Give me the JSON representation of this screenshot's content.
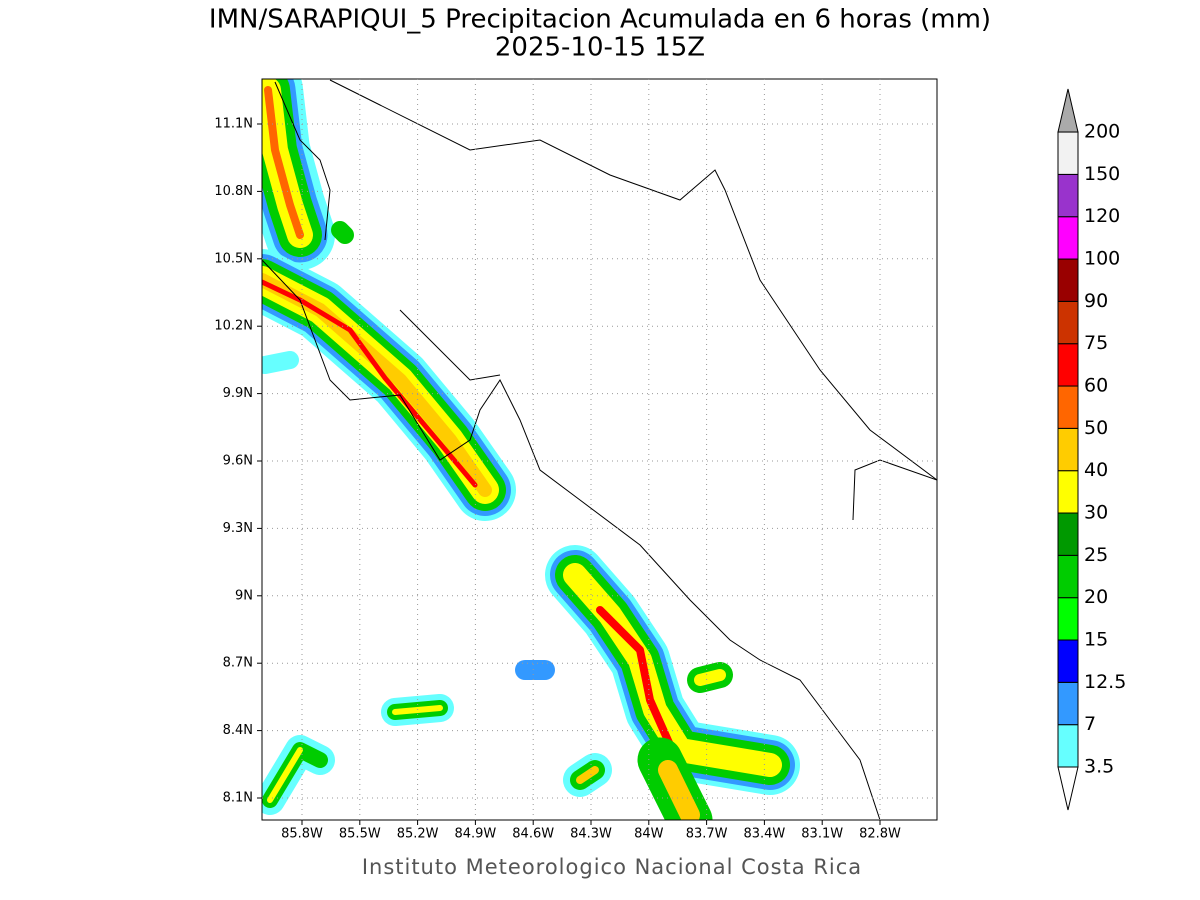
{
  "title": "IMN/SARAPIQUI_5 Precipitacion Acumulada en 6 horas (mm)",
  "subtitle": "2025-10-15 15Z",
  "map": {
    "lat_labels": [
      "11.1N",
      "10.8N",
      "10.5N",
      "10.2N",
      "9.9N",
      "9.6N",
      "9.3N",
      "9N",
      "8.7N",
      "8.4N",
      "8.1N"
    ],
    "lon_labels": [
      "85.8W",
      "85.5W",
      "85.2W",
      "84.9W",
      "84.6W",
      "84.3W",
      "84W",
      "83.7W",
      "83.4W",
      "83.1W",
      "82.8W"
    ]
  },
  "colorbar": {
    "levels": [
      "3.5",
      "7",
      "12.5",
      "15",
      "20",
      "25",
      "30",
      "40",
      "50",
      "60",
      "75",
      "90",
      "100",
      "120",
      "150",
      "200"
    ],
    "colors": [
      "#66ffff",
      "#3399ff",
      "#0000ff",
      "#00ff00",
      "#00cc00",
      "#009900",
      "#ffff00",
      "#ffcc00",
      "#ff6600",
      "#ff0000",
      "#cc3300",
      "#990000",
      "#ff00ff",
      "#9933cc",
      "#f2f2f2"
    ],
    "over_color": "#aaaaaa",
    "under_color": "#ffffff"
  },
  "footer": "Instituto Meteorologico Nacional Costa Rica"
}
